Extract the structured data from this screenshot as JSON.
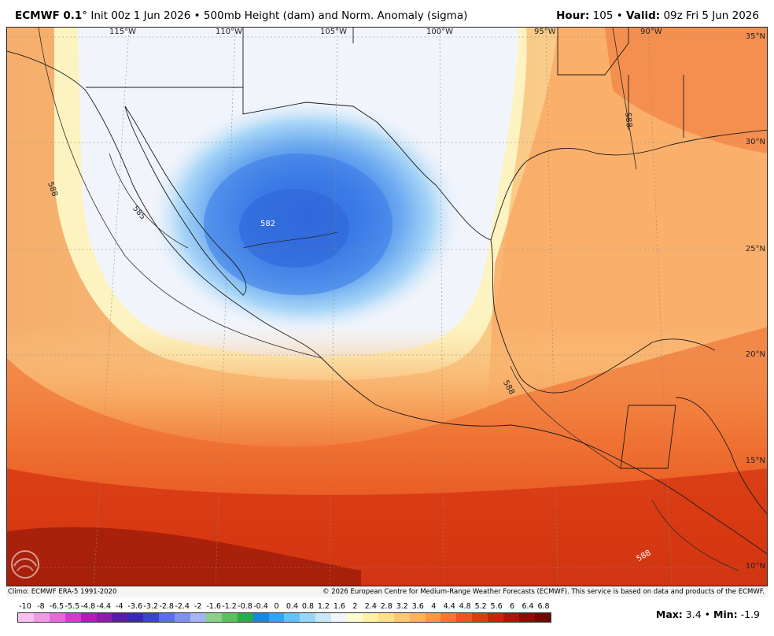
{
  "header": {
    "model": "ECMWF 0.1",
    "model_suffix": "° Init 00z 1 Jun 2026 • 500mb Height (dam) and Norm. Anomaly (sigma)",
    "hour_label": "Hour:",
    "hour_value": "105 • ",
    "valid_label": "Valid:",
    "valid_value": "09z Fri 5 Jun 2026"
  },
  "map": {
    "lon_labels": [
      "115°W",
      "110°W",
      "105°W",
      "100°W",
      "95°W",
      "90°W"
    ],
    "lat_labels": [
      "35°N",
      "30°N",
      "25°N",
      "20°N",
      "15°N",
      "10°N"
    ],
    "contour_labels": [
      "588",
      "585",
      "582",
      "588",
      "588",
      "588"
    ],
    "colors": {
      "low_center": "#2f6fe0",
      "neutral": "#f2f4fb",
      "high": "#e03a15"
    }
  },
  "credits": {
    "left": "Climo: ECMWF ERA-5 1991-2020",
    "right": "© 2026 European Centre for Medium-Range Weather Forecasts (ECMWF). This service is based on data and products of the ECMWF."
  },
  "legend": {
    "labels": [
      "-10",
      "-8",
      "-6.5",
      "-5.5",
      "-4.8",
      "-4.4",
      "-4",
      "-3.6",
      "-3.2",
      "-2.8",
      "-2.4",
      "-2",
      "-1.6",
      "-1.2",
      "-0.8",
      "-0.4",
      "0",
      "0.4",
      "0.8",
      "1.2",
      "1.6",
      "2",
      "2.4",
      "2.8",
      "3.2",
      "3.6",
      "4",
      "4.4",
      "4.8",
      "5.2",
      "5.6",
      "6",
      "6.4",
      "6.8"
    ],
    "colors": [
      "#f7c0f0",
      "#f09ae6",
      "#e56ad9",
      "#d13ccb",
      "#b01eb5",
      "#8a1ea6",
      "#5a1d9e",
      "#3a2aa8",
      "#3b45c8",
      "#5a6fe0",
      "#7f92ea",
      "#a6b4f2",
      "#8ad08a",
      "#5ebf5e",
      "#2ea84a",
      "#1f86d9",
      "#3aa0f0",
      "#66bff5",
      "#98d6f7",
      "#c6e8f8",
      "#f2f4fb",
      "#fffbd2",
      "#fff2a8",
      "#ffe08a",
      "#ffc874",
      "#ffb060",
      "#ff944c",
      "#fa7438",
      "#f05426",
      "#e03a15",
      "#c8240c",
      "#a81708",
      "#881005",
      "#6a0a03"
    ],
    "max_label": "Max:",
    "max_value": "3.4 • ",
    "min_label": "Min:",
    "min_value": "-1.9"
  }
}
